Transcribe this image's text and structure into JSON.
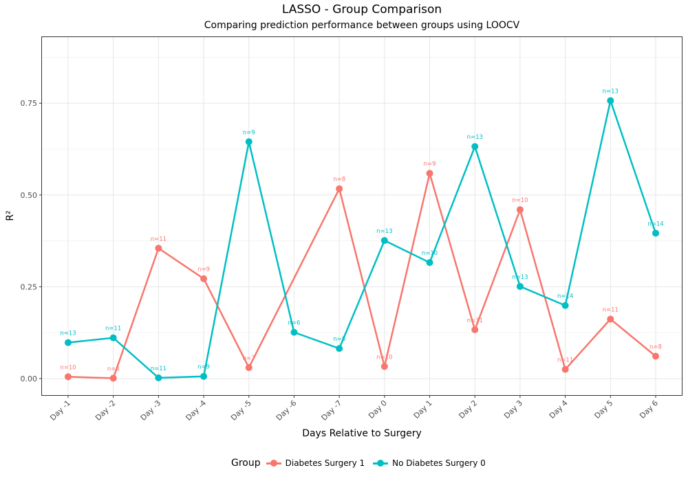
{
  "chart_data": {
    "type": "line",
    "title": "LASSO - Group Comparison",
    "subtitle": "Comparing prediction performance between groups using LOOCV",
    "xlabel": "Days Relative to Surgery",
    "ylabel": "R²",
    "ylim": [
      -0.045,
      0.93
    ],
    "yticks": [
      0.0,
      0.25,
      0.5,
      0.75
    ],
    "ytick_labels": [
      "0.00",
      "0.25",
      "0.50",
      "0.75"
    ],
    "grid": true,
    "legend_title": "Group",
    "legend_position": "bottom",
    "categories": [
      "Day -1",
      "Day -2",
      "Day -3",
      "Day -4",
      "Day -5",
      "Day -6",
      "Day -7",
      "Day 0",
      "Day 1",
      "Day 2",
      "Day 3",
      "Day 4",
      "Day 5",
      "Day 6"
    ],
    "series": [
      {
        "name": "Diabetes Surgery 1",
        "color": "#F8766D",
        "values": [
          0.005,
          0.001,
          0.355,
          0.272,
          0.03,
          null,
          0.517,
          0.033,
          0.559,
          0.133,
          0.46,
          0.025,
          0.162,
          0.061
        ],
        "labels": [
          "n=10",
          "n=8",
          "n=11",
          "n=9",
          "n=7",
          null,
          "n=8",
          "n=10",
          "n=9",
          "n=11",
          "n=10",
          "n=11",
          "n=11",
          "n=8"
        ]
      },
      {
        "name": "No Diabetes Surgery 0",
        "color": "#00BFC4",
        "values": [
          0.098,
          0.111,
          0.002,
          0.006,
          0.645,
          0.126,
          0.082,
          0.376,
          0.316,
          0.632,
          0.251,
          0.199,
          0.757,
          0.396
        ],
        "labels": [
          "n=13",
          "n=11",
          "n=11",
          "n=9",
          "n=9",
          "n=6",
          "n=8",
          "n=13",
          "n=10",
          "n=13",
          "n=13",
          "n=14",
          "n=13",
          "n=14"
        ]
      }
    ]
  }
}
